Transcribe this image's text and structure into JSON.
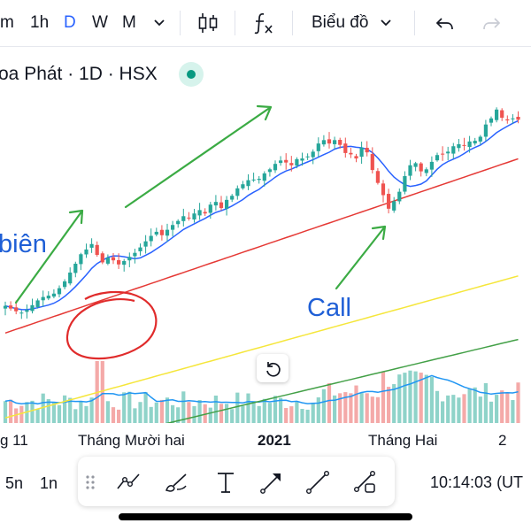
{
  "toolbar": {
    "intervals": [
      "m",
      "1h",
      "D",
      "W",
      "M"
    ],
    "active_interval": "D",
    "chart_type_icon": "candles-icon",
    "indicators_icon": "fx-icon",
    "chart_menu_label": "Biểu đồ",
    "undo_icon": "undo-icon",
    "redo_icon": "redo-icon"
  },
  "symbol": {
    "title": "oa Phát · 1D · HSX",
    "status": "market-open",
    "status_color": "#089981"
  },
  "chart_data": {
    "type": "candlestick",
    "x_tick_labels": [
      "g 11",
      "Tháng Mười hai",
      "2021",
      "Tháng Hai",
      "2"
    ],
    "colors": {
      "up": "#26a69a",
      "down": "#ef5350",
      "ma_blue": "#2962ff",
      "ma_red": "#e53935",
      "ma_yellow": "#f5e63b",
      "ma_green": "#43a047",
      "volume_ma": "#2196f3"
    },
    "closes": [
      31,
      30.6,
      30.2,
      30,
      30.4,
      31.1,
      31.8,
      32.3,
      32.5,
      32.8,
      33.6,
      34.6,
      35.9,
      37.2,
      38.6,
      39.3,
      40.1,
      38.5,
      37.4,
      38.1,
      37.7,
      37.1,
      37.6,
      38.2,
      38.8,
      39.6,
      40.5,
      41.3,
      41.9,
      41.4,
      42.2,
      42.9,
      43.5,
      44.2,
      43.9,
      44.6,
      45.1,
      44.6,
      45.9,
      46.3,
      45.4,
      46.6,
      47.2,
      48.3,
      48.9,
      49.5,
      49.6,
      49.7,
      50.5,
      51.1,
      51.9,
      52.4,
      52.1,
      51.7,
      52.6,
      52.7,
      53,
      53.7,
      54.9,
      55.4,
      54.9,
      55.4,
      54.7,
      53.5,
      53.3,
      52.7,
      54.3,
      53.6,
      51,
      49.1,
      47.3,
      45.3,
      46.4,
      47.8,
      50.1,
      51.7,
      52,
      50.8,
      51.1,
      52.2,
      53.2,
      53.3,
      53.7,
      54.5,
      54.8,
      54.6,
      55.2,
      55.3,
      55.9,
      57.7,
      58.6,
      59.9,
      58.7,
      58.3,
      58.6,
      58.4
    ]
  },
  "annotations": {
    "left_text": "biên",
    "call_text": "Call"
  },
  "reset_icon": "reset-icon",
  "bottom_bar": {
    "ranges": [
      "5n",
      "1n"
    ],
    "time": "10:14:03 (UT"
  },
  "drawing_tools": [
    "drag-handle-icon",
    "trend-lines-icon",
    "brush-icon",
    "text-icon",
    "arrow-icon",
    "line-icon",
    "shapes-icon"
  ]
}
